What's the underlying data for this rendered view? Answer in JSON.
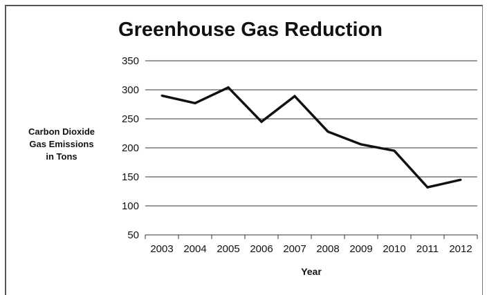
{
  "chart_data": {
    "type": "line",
    "title": "Greenhouse Gas Reduction",
    "xlabel": "Year",
    "ylabel_lines": [
      "Carbon Dioxide",
      "Gas Emissions",
      "in Tons"
    ],
    "categories": [
      "2003",
      "2004",
      "2005",
      "2006",
      "2007",
      "2008",
      "2009",
      "2010",
      "2011",
      "2012"
    ],
    "ylim": [
      50,
      350
    ],
    "yticks": [
      50,
      100,
      150,
      200,
      250,
      300,
      350
    ],
    "grid": true,
    "legend": "none",
    "series": [
      {
        "values": [
          290,
          277,
          304,
          245,
          289,
          228,
          206,
          195,
          132,
          145
        ],
        "color": "#111111"
      }
    ]
  }
}
